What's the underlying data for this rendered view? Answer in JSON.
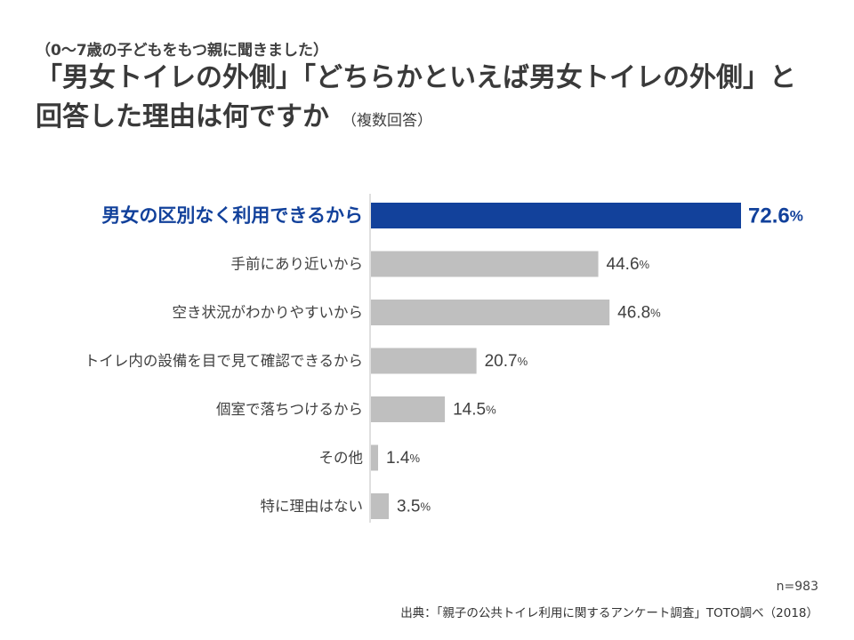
{
  "header": {
    "pre_title": "（0〜7歳の子どもをもつ親に聞きました）",
    "title_line1": "「男女トイレの外側」「どちらかといえば男女トイレの外側」と",
    "title_line2": "回答した理由は何ですか",
    "title_note": "（複数回答）"
  },
  "chart_data": {
    "type": "bar",
    "orientation": "horizontal",
    "categories": [
      "男女の区別なく利用できるから",
      "手前にあり近いから",
      "空き状況がわかりやすいから",
      "トイレ内の設備を目で見て確認できるから",
      "個室で落ちつけるから",
      "その他",
      "特に理由はない"
    ],
    "values": [
      72.6,
      44.6,
      46.8,
      20.7,
      14.5,
      1.4,
      3.5
    ],
    "value_unit": "%",
    "highlight_index": 0,
    "xlim": [
      0,
      72.6
    ],
    "grid": false,
    "legend": "none",
    "colors": {
      "highlight_bar": "#12419b",
      "bar": "#bfbfbf",
      "highlight_text": "#12419b",
      "text": "#404040",
      "axis": "#bfbfbf"
    }
  },
  "footer": {
    "sample_size": "n=983",
    "source": "出典：「親子の公共トイレ利用に関するアンケート調査」TOTO調べ（2018）"
  }
}
